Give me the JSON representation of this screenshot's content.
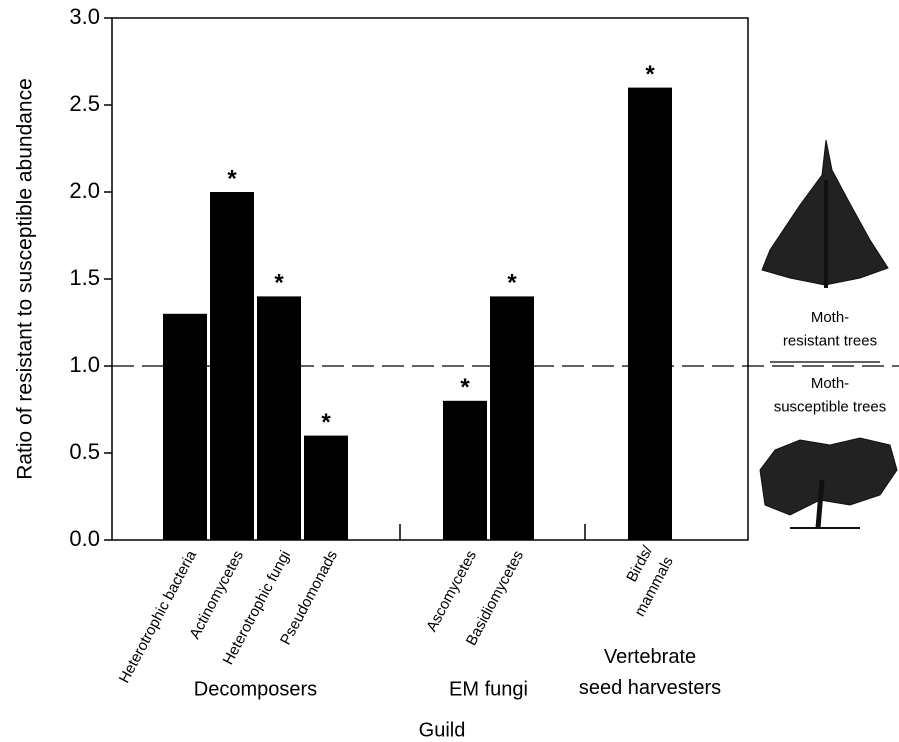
{
  "chart_data": {
    "type": "bar",
    "y_label": "Ratio of resistant to susceptible abundance",
    "x_label": "Guild",
    "groups": [
      {
        "name": "Decomposers",
        "categories": [
          "Heterotrophic bacteria",
          "Actinomycetes",
          "Heterotrophic fungi",
          "Pseudomonads"
        ],
        "values": [
          1.3,
          2.0,
          1.4,
          0.6
        ],
        "significance": [
          null,
          "*",
          "*",
          "*"
        ]
      },
      {
        "name": "EM fungi",
        "categories": [
          "Ascomycetes",
          "Basidiomycetes"
        ],
        "values": [
          0.8,
          1.4
        ],
        "significance": [
          "*",
          "*"
        ]
      },
      {
        "name": "Vertebrate\nseed harvesters",
        "categories": [
          "Birds/\nmammals"
        ],
        "values": [
          2.6
        ],
        "significance": [
          "*"
        ]
      }
    ],
    "color": "#000000",
    "reference_line": 1,
    "ylim": [
      0,
      3
    ],
    "yticks": [
      {
        "value": 0,
        "label": "0.0"
      },
      {
        "value": 0.5,
        "label": "0.5"
      },
      {
        "value": 1,
        "label": "1.0"
      },
      {
        "value": 1.5,
        "label": "1.5"
      },
      {
        "value": 2,
        "label": "2.0"
      },
      {
        "value": 2.5,
        "label": "2.5"
      },
      {
        "value": 3,
        "label": "3.0"
      }
    ],
    "side_labels": {
      "top": "Moth-\nresistant trees",
      "bottom": "Moth-\nsusceptible trees"
    }
  }
}
